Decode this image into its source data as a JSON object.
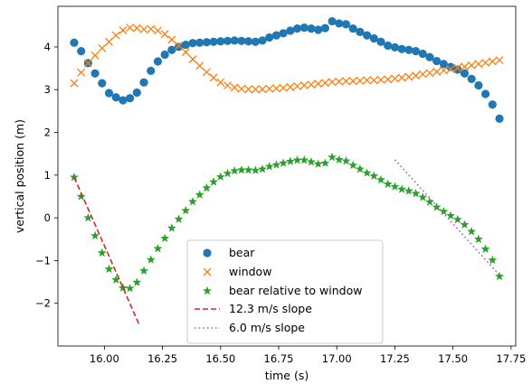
{
  "chart_data": {
    "type": "scatter",
    "title": "",
    "xlabel": "time (s)",
    "ylabel": "vertical position (m)",
    "xlim": [
      15.8,
      17.77
    ],
    "ylim": [
      -3.0,
      4.95
    ],
    "xticks": [
      16.0,
      16.25,
      16.5,
      16.75,
      17.0,
      17.25,
      17.5,
      17.75
    ],
    "xtick_labels": [
      "16.00",
      "16.25",
      "16.50",
      "16.75",
      "17.00",
      "17.25",
      "17.50",
      "17.75"
    ],
    "yticks": [
      -2,
      -1,
      0,
      1,
      2,
      3,
      4
    ],
    "ytick_labels": [
      "−2",
      "−1",
      "0",
      "1",
      "2",
      "3",
      "4"
    ],
    "grid": false,
    "legend_position": "bottom-center",
    "x": [
      15.87,
      15.9,
      15.93,
      15.96,
      15.99,
      16.02,
      16.05,
      16.08,
      16.11,
      16.14,
      16.17,
      16.2,
      16.23,
      16.26,
      16.29,
      16.32,
      16.35,
      16.38,
      16.41,
      16.44,
      16.47,
      16.5,
      16.53,
      16.56,
      16.59,
      16.62,
      16.65,
      16.68,
      16.71,
      16.74,
      16.77,
      16.8,
      16.83,
      16.86,
      16.89,
      16.92,
      16.95,
      16.98,
      17.01,
      17.04,
      17.07,
      17.1,
      17.13,
      17.16,
      17.19,
      17.22,
      17.25,
      17.28,
      17.31,
      17.34,
      17.37,
      17.4,
      17.43,
      17.46,
      17.49,
      17.52,
      17.55,
      17.58,
      17.61,
      17.64,
      17.67,
      17.7
    ],
    "series": [
      {
        "name": "bear",
        "marker": "circle",
        "color": "#1f77b4",
        "values": [
          4.1,
          3.9,
          3.62,
          3.38,
          3.15,
          2.92,
          2.82,
          2.75,
          2.8,
          2.93,
          3.17,
          3.44,
          3.66,
          3.82,
          3.93,
          4.0,
          4.05,
          4.09,
          4.1,
          4.11,
          4.12,
          4.13,
          4.14,
          4.15,
          4.14,
          4.13,
          4.12,
          4.15,
          4.22,
          4.27,
          4.32,
          4.38,
          4.43,
          4.45,
          4.43,
          4.4,
          4.44,
          4.6,
          4.55,
          4.53,
          4.43,
          4.35,
          4.27,
          4.2,
          4.12,
          4.03,
          3.99,
          3.95,
          3.93,
          3.9,
          3.84,
          3.76,
          3.67,
          3.6,
          3.53,
          3.47,
          3.38,
          3.25,
          3.1,
          2.9,
          2.65,
          2.32
        ]
      },
      {
        "name": "window",
        "marker": "x",
        "color": "#ff7f0e",
        "values": [
          3.15,
          3.4,
          3.62,
          3.8,
          3.97,
          4.12,
          4.27,
          4.39,
          4.45,
          4.44,
          4.41,
          4.42,
          4.38,
          4.3,
          4.17,
          4.03,
          3.88,
          3.71,
          3.56,
          3.41,
          3.28,
          3.17,
          3.1,
          3.05,
          3.02,
          3.01,
          3.01,
          3.01,
          3.02,
          3.03,
          3.04,
          3.06,
          3.08,
          3.1,
          3.12,
          3.14,
          3.16,
          3.18,
          3.19,
          3.2,
          3.2,
          3.21,
          3.22,
          3.22,
          3.23,
          3.24,
          3.26,
          3.28,
          3.3,
          3.33,
          3.36,
          3.39,
          3.42,
          3.45,
          3.48,
          3.51,
          3.54,
          3.57,
          3.6,
          3.63,
          3.66,
          3.69
        ]
      },
      {
        "name": "bear relative to window",
        "marker": "star",
        "color": "#2ca02c",
        "values": [
          0.95,
          0.5,
          0.0,
          -0.42,
          -0.82,
          -1.2,
          -1.45,
          -1.64,
          -1.65,
          -1.51,
          -1.24,
          -0.98,
          -0.72,
          -0.48,
          -0.24,
          -0.03,
          0.17,
          0.38,
          0.54,
          0.7,
          0.84,
          0.96,
          1.04,
          1.1,
          1.12,
          1.12,
          1.11,
          1.14,
          1.2,
          1.24,
          1.28,
          1.32,
          1.35,
          1.35,
          1.31,
          1.26,
          1.28,
          1.42,
          1.36,
          1.33,
          1.23,
          1.14,
          1.05,
          0.98,
          0.89,
          0.79,
          0.73,
          0.67,
          0.63,
          0.57,
          0.48,
          0.37,
          0.25,
          0.15,
          0.05,
          -0.04,
          -0.16,
          -0.32,
          -0.5,
          -0.73,
          -0.99,
          -1.37
        ]
      }
    ],
    "lines": [
      {
        "name": "12.3 m/s slope",
        "style": "dashed",
        "color": "#d62728",
        "x": [
          15.87,
          16.15
        ],
        "y": [
          0.95,
          -2.5
        ]
      },
      {
        "name": "6.0 m/s slope",
        "style": "dotted",
        "color": "#9467bd",
        "x": [
          17.25,
          17.7
        ],
        "y": [
          1.36,
          -1.34
        ]
      }
    ]
  }
}
